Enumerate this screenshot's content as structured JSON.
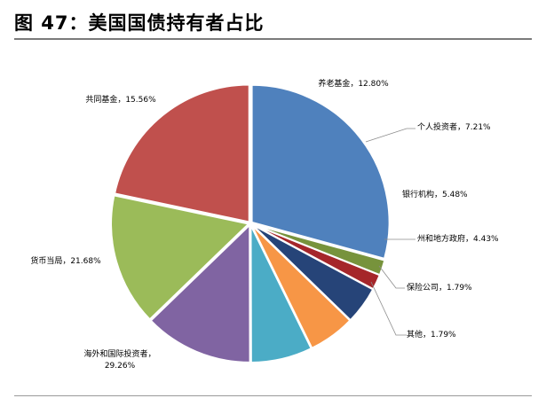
{
  "figure": {
    "title": "图 47：美国国债持有者占比"
  },
  "chart_data": {
    "type": "pie",
    "title": "",
    "start": "12 o'clock",
    "direction": "clockwise",
    "slices": [
      {
        "label": "海外和国际投资者",
        "display": "海外和国际投资者，\n29.26%",
        "value": 29.26,
        "color": "#4F81BD"
      },
      {
        "label": "其他",
        "display": "其他，1.79%",
        "value": 1.79,
        "color": "#77933C"
      },
      {
        "label": "保险公司",
        "display": "保险公司，1.79%",
        "value": 1.79,
        "color": "#A5262A"
      },
      {
        "label": "州和地方政府",
        "display": "州和地方政府，4.43%",
        "value": 4.43,
        "color": "#264478"
      },
      {
        "label": "银行机构",
        "display": "银行机构，5.48%",
        "value": 5.48,
        "color": "#F79646"
      },
      {
        "label": "个人投资者",
        "display": "个人投资者，7.21%",
        "value": 7.21,
        "color": "#4BACC6"
      },
      {
        "label": "养老基金",
        "display": "养老基金，12.80%",
        "value": 12.8,
        "color": "#8064A2"
      },
      {
        "label": "共同基金",
        "display": "共同基金，15.56%",
        "value": 15.56,
        "color": "#9BBB59"
      },
      {
        "label": "货币当局",
        "display": "货币当局，21.68%",
        "value": 21.68,
        "color": "#C0504D"
      }
    ]
  }
}
